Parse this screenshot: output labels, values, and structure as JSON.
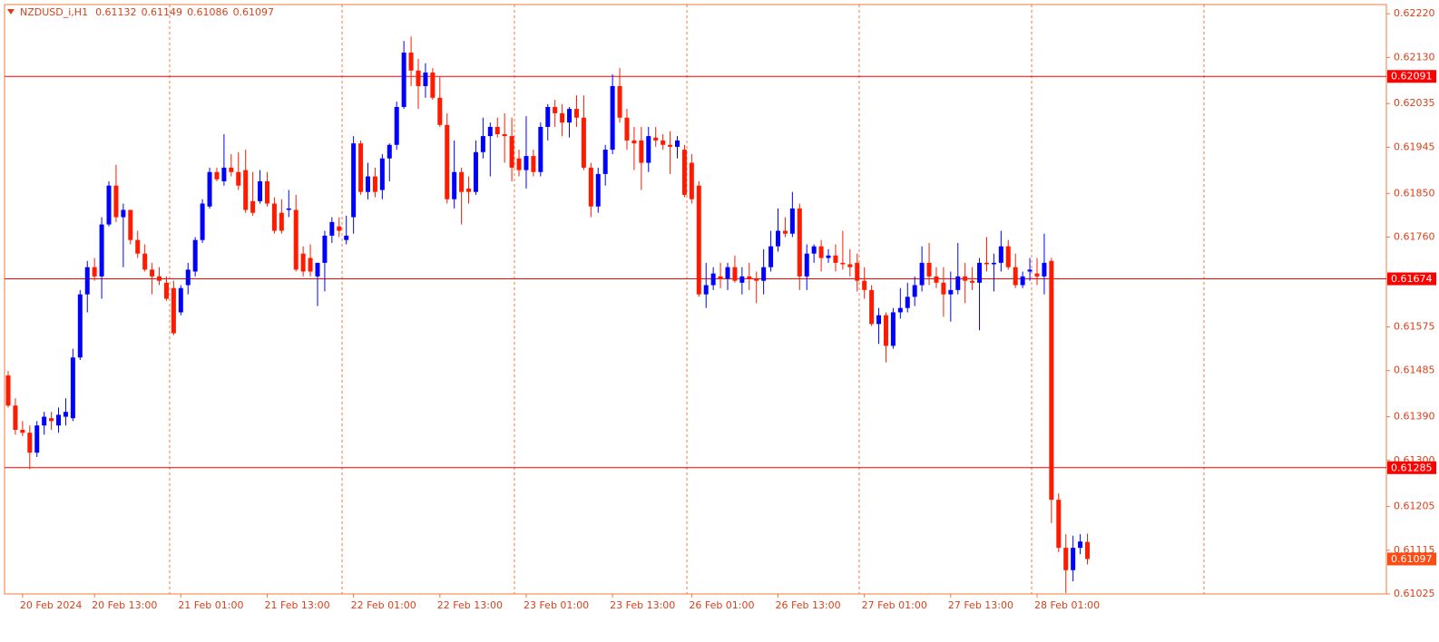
{
  "chart_data": {
    "type": "candlestick",
    "title": "NZDUSD_i,H1",
    "up_color": "#0000ff",
    "down_color": "#ff1a00",
    "hline_color": "#ff0000",
    "hlines": [
      0.62091,
      0.61674,
      0.61285
    ],
    "ylim": [
      0.61025,
      0.62239
    ],
    "yticks": [
      {
        "value": 0.6222,
        "label": "0.62220"
      },
      {
        "value": 0.6213,
        "label": "0.62130"
      },
      0.62035,
      0.61945,
      {
        "value": 0.6185,
        "label": "0.61850"
      },
      {
        "value": 0.6176,
        "label": "0.61760"
      },
      0.61575,
      0.61485,
      {
        "value": 0.6139,
        "label": "0.61390"
      },
      {
        "value": 0.613,
        "label": "0.61300"
      },
      0.61205,
      0.61115,
      0.61025
    ],
    "categories": [
      null,
      null,
      "20 Feb 2024",
      null,
      null,
      null,
      null,
      null,
      null,
      null,
      null,
      null,
      "20 Feb 13:00",
      null,
      null,
      null,
      null,
      null,
      null,
      null,
      null,
      null,
      null,
      null,
      "21 Feb 01:00",
      null,
      null,
      null,
      null,
      null,
      null,
      null,
      null,
      null,
      null,
      null,
      "21 Feb 13:00",
      null,
      null,
      null,
      null,
      null,
      null,
      null,
      null,
      null,
      null,
      null,
      "22 Feb 01:00",
      null,
      null,
      null,
      null,
      null,
      null,
      null,
      null,
      null,
      null,
      null,
      "22 Feb 13:00",
      null,
      null,
      null,
      null,
      null,
      null,
      null,
      null,
      null,
      null,
      null,
      "23 Feb 01:00",
      null,
      null,
      null,
      null,
      null,
      null,
      null,
      null,
      null,
      null,
      null,
      "23 Feb 13:00",
      null,
      null,
      null,
      null,
      null,
      null,
      null,
      null,
      null,
      null,
      "26 Feb 01:00",
      null,
      null,
      null,
      null,
      null,
      null,
      null,
      null,
      null,
      null,
      null,
      "26 Feb 13:00",
      null,
      null,
      null,
      null,
      null,
      null,
      null,
      null,
      null,
      null,
      null,
      "27 Feb 01:00",
      null,
      null,
      null,
      null,
      null,
      null,
      null,
      null,
      null,
      null,
      null,
      "27 Feb 13:00",
      null,
      null,
      null,
      null,
      null,
      null,
      null,
      null,
      null,
      null,
      null,
      "28 Feb 01:00",
      null,
      null,
      null,
      null,
      null,
      null,
      null
    ],
    "open": [
      0.61475,
      0.61413,
      0.61363,
      0.61357,
      0.61316,
      0.61372,
      0.61387,
      0.61372,
      0.6139,
      0.61387,
      0.61512,
      0.61642,
      0.61698,
      0.61679,
      0.61786,
      0.61866,
      0.61801,
      0.61816,
      0.61754,
      0.61726,
      0.61693,
      0.61679,
      0.61666,
      0.61655,
      0.61605,
      0.61661,
      0.61689,
      0.61754,
      0.61823,
      0.61894,
      0.61875,
      0.61903,
      0.61894,
      0.61898,
      0.61834,
      0.61834,
      0.61875,
      0.61829,
      0.6181,
      0.61816,
      0.61816,
      0.61726,
      0.61717,
      0.61679,
      0.61707,
      0.61763,
      0.61782,
      0.61754,
      0.61801,
      0.61953,
      0.61853,
      0.61885,
      0.61857,
      0.61922,
      0.6195,
      0.62028,
      0.6214,
      0.62103,
      0.62071,
      0.62099,
      0.62047,
      0.61991,
      0.61838,
      0.61894,
      0.6186,
      0.61853,
      0.61935,
      0.61968,
      0.61987,
      0.61972,
      0.61968,
      0.61922,
      0.61898,
      0.61927,
      0.61894,
      0.61987,
      0.62028,
      0.62015,
      0.61996,
      0.62024,
      0.62006,
      0.61903,
      0.61823,
      0.6189,
      0.6194,
      0.62071,
      0.62006,
      0.61959,
      0.61959,
      0.61913,
      0.61965,
      0.61959,
      0.6195,
      0.61946,
      0.6194,
      0.61913,
      0.61866,
      0.61642,
      0.61661,
      0.61679,
      0.61674,
      0.61698,
      0.61666,
      0.61679,
      0.61674,
      0.6167,
      0.61698,
      0.61741,
      0.61773,
      0.61767,
      0.61819,
      0.61679,
      0.61726,
      0.61741,
      0.61717,
      0.61722,
      0.61707,
      0.61704,
      0.61707,
      0.6167,
      0.61651,
      0.61581,
      0.61599,
      0.61536,
      0.61605,
      0.61614,
      0.61637,
      0.61661,
      0.61707,
      0.61679,
      0.61666,
      0.61642,
      0.61651,
      0.61679,
      0.6167,
      0.61666,
      0.61707,
      0.61704,
      0.61707,
      0.61741,
      0.61698,
      0.61661,
      0.61689,
      0.61685,
      0.61679,
      0.61711,
      0.61219,
      0.6112,
      0.61074,
      0.6112,
      0.61132
    ],
    "high": [
      0.61484,
      0.61428,
      0.61381,
      0.61372,
      0.61381,
      0.614,
      0.614,
      0.61409,
      0.61428,
      0.6153,
      0.61651,
      0.61711,
      0.61717,
      0.61801,
      0.61875,
      0.61909,
      0.61829,
      0.61816,
      0.61773,
      0.61745,
      0.61707,
      0.61698,
      0.61679,
      0.6167,
      0.61661,
      0.61707,
      0.6176,
      0.61838,
      0.61903,
      0.61903,
      0.61972,
      0.61931,
      0.61935,
      0.6194,
      0.61894,
      0.61898,
      0.61894,
      0.61842,
      0.61838,
      0.61857,
      0.61847,
      0.61741,
      0.61745,
      0.61707,
      0.61773,
      0.61801,
      0.61801,
      0.61804,
      0.61968,
      0.61959,
      0.61913,
      0.61903,
      0.61931,
      0.61953,
      0.62039,
      0.62164,
      0.62173,
      0.62127,
      0.62118,
      0.62108,
      0.6209,
      0.62015,
      0.61959,
      0.61903,
      0.61885,
      0.61959,
      0.62006,
      0.61996,
      0.62006,
      0.62015,
      0.62006,
      0.6194,
      0.62009,
      0.6194,
      0.61996,
      0.62034,
      0.62043,
      0.62034,
      0.62028,
      0.62052,
      0.62052,
      0.61913,
      0.61903,
      0.6195,
      0.62095,
      0.62108,
      0.62024,
      0.61987,
      0.61987,
      0.61987,
      0.61987,
      0.61972,
      0.61978,
      0.61968,
      0.6195,
      0.61931,
      0.61875,
      0.61707,
      0.61698,
      0.61707,
      0.61707,
      0.61722,
      0.61698,
      0.61707,
      0.61689,
      0.61735,
      0.61773,
      0.61819,
      0.61801,
      0.61853,
      0.61829,
      0.61745,
      0.61745,
      0.61754,
      0.61735,
      0.61745,
      0.61773,
      0.61735,
      0.61726,
      0.61698,
      0.61661,
      0.61614,
      0.61605,
      0.61614,
      0.61655,
      0.61666,
      0.61679,
      0.61741,
      0.61748,
      0.61698,
      0.61698,
      0.61689,
      0.61748,
      0.61707,
      0.61698,
      0.61717,
      0.6176,
      0.61726,
      0.61773,
      0.61754,
      0.61726,
      0.61689,
      0.61717,
      0.61717,
      0.61767,
      0.61717,
      0.61232,
      0.61148,
      0.61145,
      0.61148,
      0.61149
    ],
    "low": [
      0.61409,
      0.61353,
      0.6135,
      0.61282,
      0.61307,
      0.61353,
      0.61363,
      0.61357,
      0.61372,
      0.61381,
      0.61507,
      0.61605,
      0.6167,
      0.61633,
      0.61782,
      0.61791,
      0.61698,
      0.61745,
      0.61717,
      0.61689,
      0.61642,
      0.61661,
      0.61629,
      0.61558,
      0.61599,
      0.61642,
      0.61679,
      0.61748,
      0.61819,
      0.61875,
      0.61866,
      0.61885,
      0.61857,
      0.6181,
      0.61804,
      0.61829,
      0.61823,
      0.61767,
      0.61767,
      0.61801,
      0.61689,
      0.61679,
      0.61679,
      0.61618,
      0.61648,
      0.61748,
      0.6176,
      0.61745,
      0.61767,
      0.61847,
      0.61838,
      0.61842,
      0.61838,
      0.61875,
      0.6194,
      0.62024,
      0.62071,
      0.62024,
      0.62047,
      0.62043,
      0.61987,
      0.61829,
      0.61819,
      0.61786,
      0.61829,
      0.61847,
      0.61922,
      0.61885,
      0.61965,
      0.61913,
      0.61875,
      0.61885,
      0.6186,
      0.61885,
      0.61885,
      0.61959,
      0.61987,
      0.61968,
      0.61965,
      0.61987,
      0.61898,
      0.61801,
      0.6181,
      0.61866,
      0.61931,
      0.61996,
      0.6194,
      0.61898,
      0.61857,
      0.61894,
      0.61946,
      0.6194,
      0.6189,
      0.61922,
      0.61842,
      0.61829,
      0.61637,
      0.61614,
      0.61651,
      0.61655,
      0.61651,
      0.61666,
      0.61642,
      0.61651,
      0.61624,
      0.61642,
      0.61689,
      0.6173,
      0.6176,
      0.6176,
      0.61651,
      0.61651,
      0.61707,
      0.61689,
      0.61707,
      0.61689,
      0.61693,
      0.61679,
      0.61648,
      0.61633,
      0.61577,
      0.6154,
      0.61502,
      0.6153,
      0.61592,
      0.61605,
      0.61618,
      0.61648,
      0.61661,
      0.61655,
      0.61596,
      0.61586,
      0.61642,
      0.61624,
      0.61651,
      0.61568,
      0.61689,
      0.61648,
      0.61689,
      0.61693,
      0.61655,
      0.61655,
      0.6167,
      0.61661,
      0.61642,
      0.61171,
      0.61111,
      0.61027,
      0.61051,
      0.61107,
      0.61086
    ],
    "close": [
      0.61413,
      0.61363,
      0.61357,
      0.61316,
      0.61372,
      0.6139,
      0.61381,
      0.61394,
      0.614,
      0.61512,
      0.61642,
      0.61698,
      0.61679,
      0.61786,
      0.61866,
      0.61801,
      0.61816,
      0.61754,
      0.61726,
      0.61693,
      0.61679,
      0.6167,
      0.61633,
      0.61562,
      0.61655,
      0.61693,
      0.61754,
      0.61829,
      0.61894,
      0.61879,
      0.61903,
      0.61894,
      0.61866,
      0.61816,
      0.6181,
      0.61875,
      0.61829,
      0.61773,
      0.61773,
      0.61819,
      0.61693,
      0.61689,
      0.61689,
      0.61707,
      0.61763,
      0.61791,
      0.61773,
      0.61763,
      0.61953,
      0.61853,
      0.61885,
      0.61853,
      0.61922,
      0.6195,
      0.62028,
      0.6214,
      0.62103,
      0.62071,
      0.62099,
      0.62047,
      0.61991,
      0.61838,
      0.61894,
      0.61853,
      0.61853,
      0.61935,
      0.61968,
      0.61987,
      0.61972,
      0.61968,
      0.61903,
      0.61898,
      0.61927,
      0.61894,
      0.61987,
      0.62028,
      0.62015,
      0.61996,
      0.62024,
      0.62006,
      0.61903,
      0.61823,
      0.6189,
      0.6194,
      0.62071,
      0.62006,
      0.61959,
      0.61953,
      0.61913,
      0.61968,
      0.61959,
      0.6195,
      0.61946,
      0.61959,
      0.61847,
      0.61838,
      0.61642,
      0.61661,
      0.61685,
      0.61674,
      0.61698,
      0.6167,
      0.61679,
      0.61674,
      0.6167,
      0.61698,
      0.61741,
      0.61773,
      0.61767,
      0.61819,
      0.61679,
      0.61726,
      0.61741,
      0.61717,
      0.61722,
      0.61707,
      0.61704,
      0.61698,
      0.6167,
      0.61651,
      0.61581,
      0.61599,
      0.61536,
      0.61605,
      0.61614,
      0.61637,
      0.61661,
      0.61707,
      0.61679,
      0.61666,
      0.61642,
      0.61651,
      0.61679,
      0.6167,
      0.61666,
      0.61707,
      0.61704,
      0.61707,
      0.61741,
      0.61698,
      0.61661,
      0.61679,
      0.61693,
      0.61679,
      0.61707,
      0.61219,
      0.6112,
      0.61074,
      0.6112,
      0.61133,
      0.61097
    ]
  }
}
